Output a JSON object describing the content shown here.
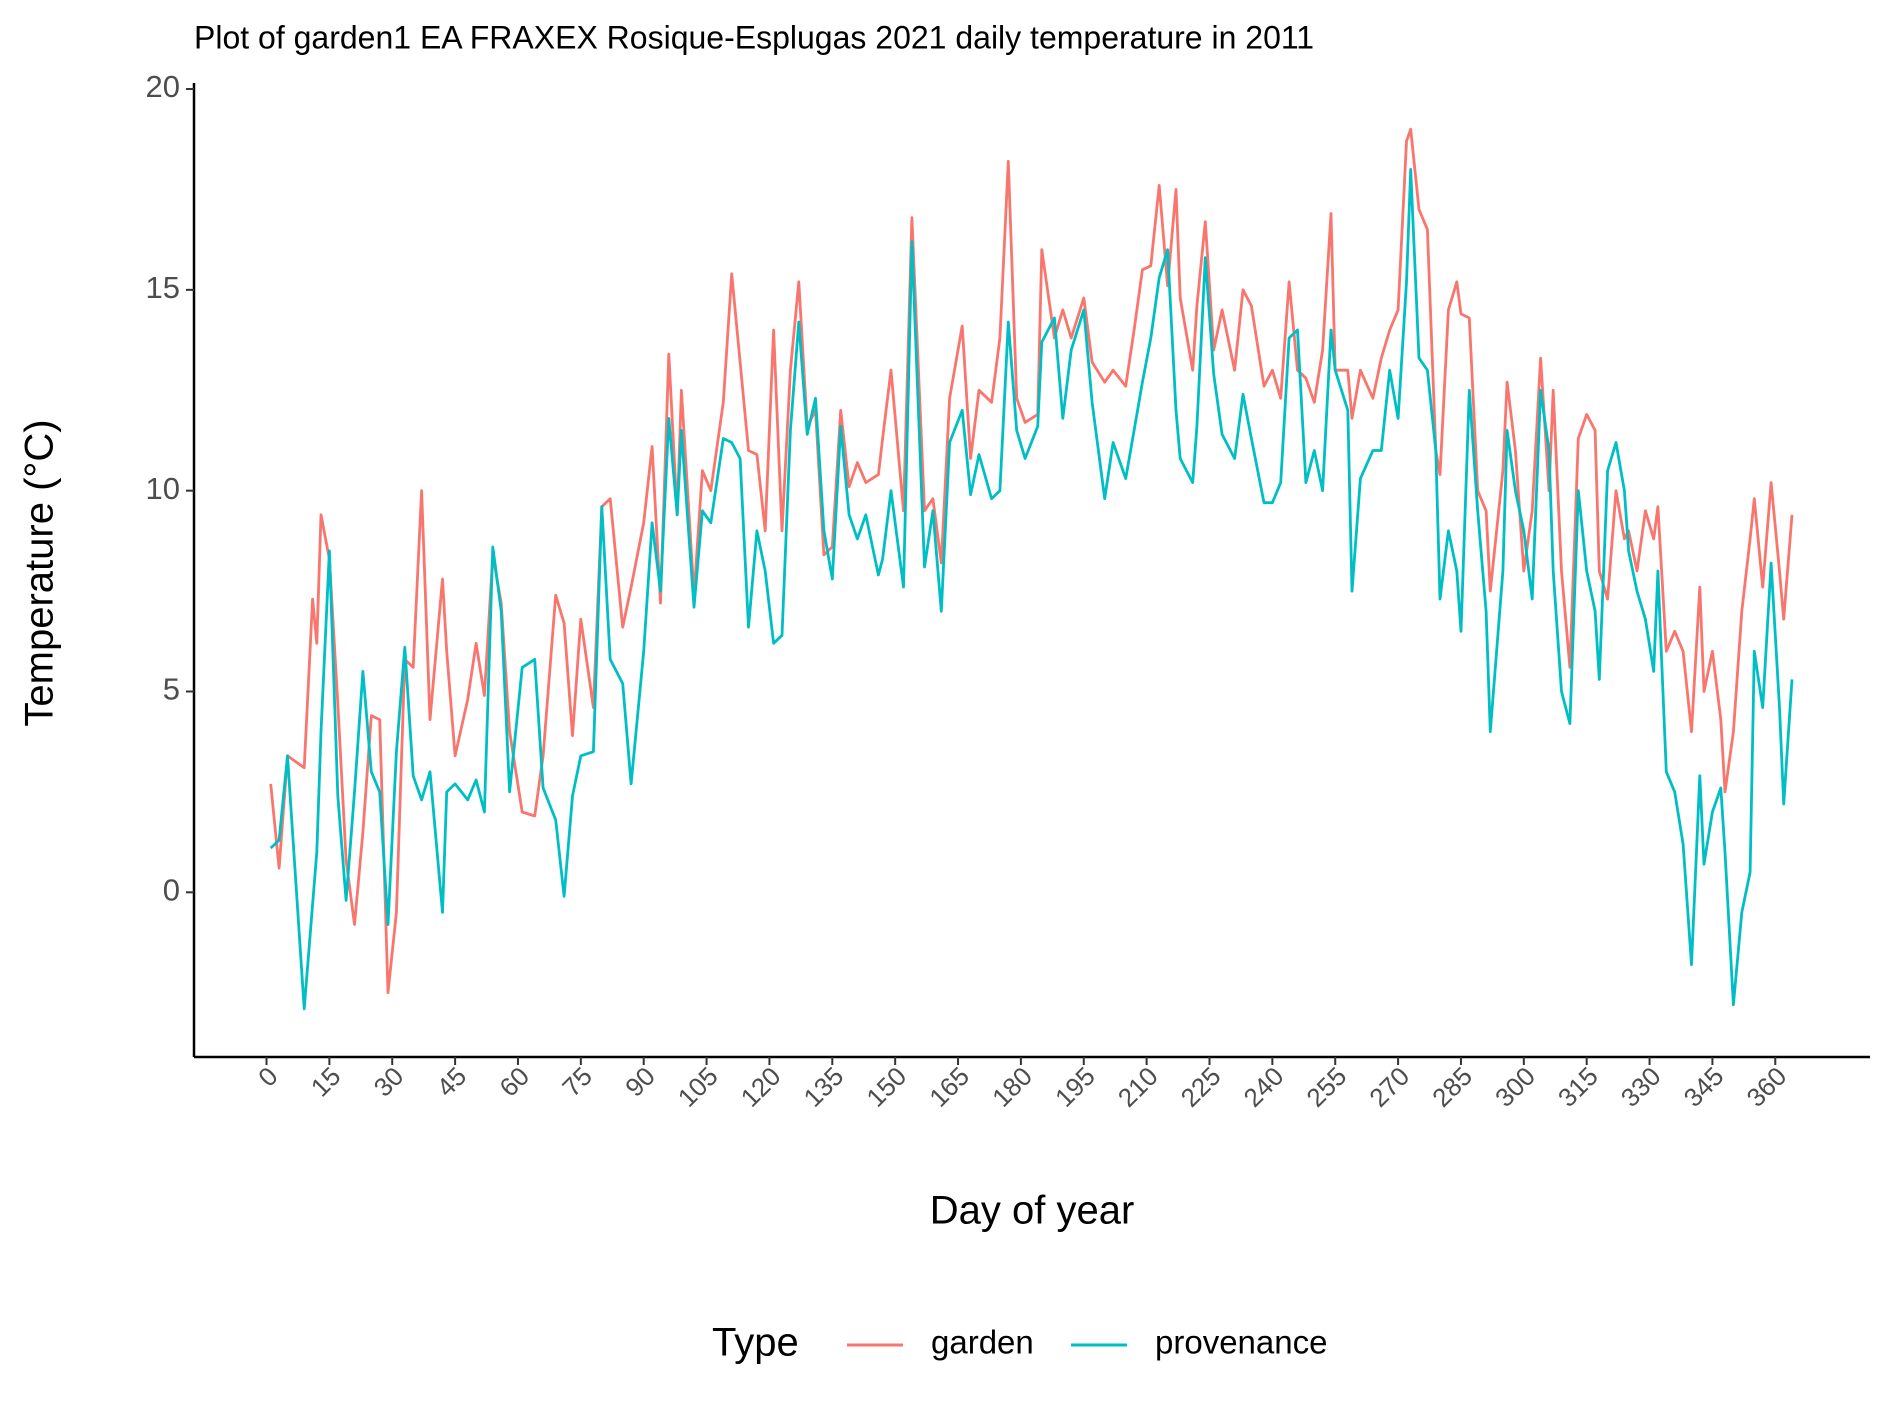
{
  "chart_data": {
    "type": "line",
    "title": "Plot of garden1 EA FRAXEX Rosique-Esplugas 2021 daily temperature in 2011",
    "xlabel": "Day of year",
    "ylabel": "Temperature (°C)",
    "legend_title": "Type",
    "legend": "bottom",
    "x": [
      1,
      3,
      5,
      9,
      11,
      12,
      13,
      15,
      17,
      19,
      21,
      23,
      25,
      27,
      29,
      31,
      33,
      35,
      37,
      39,
      42,
      43,
      45,
      48,
      50,
      52,
      54,
      56,
      58,
      61,
      64,
      66,
      69,
      71,
      73,
      75,
      78,
      80,
      82,
      85,
      87,
      90,
      92,
      94,
      96,
      98,
      99,
      102,
      104,
      106,
      109,
      111,
      113,
      115,
      117,
      119,
      121,
      123,
      125,
      127,
      129,
      131,
      133,
      135,
      137,
      139,
      141,
      143,
      146,
      147,
      149,
      152,
      154,
      157,
      159,
      161,
      163,
      166,
      168,
      170,
      173,
      175,
      177,
      179,
      181,
      184,
      185,
      188,
      190,
      192,
      195,
      197,
      200,
      202,
      205,
      207,
      209,
      211,
      213,
      215,
      217,
      218,
      221,
      222,
      224,
      226,
      228,
      231,
      233,
      235,
      238,
      240,
      242,
      244,
      246,
      248,
      250,
      252,
      254,
      255,
      258,
      259,
      261,
      264,
      266,
      268,
      270,
      272,
      273,
      275,
      277,
      279,
      280,
      282,
      284,
      285,
      287,
      289,
      291,
      292,
      295,
      296,
      298,
      300,
      302,
      304,
      306,
      307,
      309,
      311,
      313,
      315,
      317,
      318,
      320,
      322,
      324,
      325,
      327,
      329,
      331,
      332,
      334,
      336,
      338,
      340,
      342,
      343,
      345,
      347,
      348,
      350,
      352,
      354,
      355,
      357,
      359,
      361,
      362,
      364
    ],
    "series": [
      {
        "name": "garden",
        "color": "#F8766D",
        "values": [
          2.7,
          0.6,
          3.4,
          3.1,
          7.3,
          6.2,
          9.4,
          8.3,
          4.7,
          0.8,
          -0.8,
          1.5,
          4.4,
          4.3,
          -2.5,
          -0.5,
          5.8,
          5.6,
          10.0,
          4.3,
          7.8,
          6.0,
          3.4,
          4.8,
          6.2,
          4.9,
          8.4,
          7.2,
          4.0,
          2.0,
          1.9,
          3.4,
          7.4,
          6.7,
          3.9,
          6.8,
          4.6,
          9.6,
          9.8,
          6.6,
          7.6,
          9.2,
          11.1,
          7.2,
          13.4,
          9.4,
          12.5,
          7.4,
          10.5,
          10.0,
          12.2,
          15.4,
          13.2,
          11.0,
          10.9,
          9.0,
          14.0,
          9.0,
          13.0,
          15.2,
          11.6,
          12.0,
          8.4,
          8.6,
          12.0,
          10.1,
          10.7,
          10.2,
          10.4,
          11.3,
          13.0,
          9.5,
          16.8,
          9.5,
          9.8,
          8.2,
          12.3,
          14.1,
          10.8,
          12.5,
          12.2,
          13.8,
          18.2,
          12.3,
          11.7,
          11.9,
          16.0,
          13.8,
          14.5,
          13.8,
          14.8,
          13.2,
          12.7,
          13.0,
          12.6,
          14.0,
          15.5,
          15.6,
          17.6,
          15.1,
          17.5,
          14.8,
          13.0,
          14.6,
          16.7,
          13.5,
          14.5,
          13.0,
          15.0,
          14.6,
          12.6,
          13.0,
          12.3,
          15.2,
          13.0,
          12.8,
          12.2,
          13.5,
          16.9,
          13.0,
          13.0,
          11.8,
          13.0,
          12.3,
          13.3,
          14.0,
          14.5,
          18.7,
          19.0,
          17.0,
          16.5,
          11.0,
          10.4,
          14.5,
          15.2,
          14.4,
          14.3,
          10.0,
          9.5,
          7.5,
          10.5,
          12.7,
          11.0,
          8.0,
          9.5,
          13.3,
          10.0,
          12.5,
          8.0,
          5.6,
          11.3,
          11.9,
          11.5,
          8.0,
          7.3,
          10.0,
          8.8,
          9.0,
          8.0,
          9.5,
          8.8,
          9.6,
          6.0,
          6.5,
          6.0,
          4.0,
          7.6,
          5.0,
          6.0,
          4.3,
          2.5,
          4.0,
          7.0,
          8.8,
          9.8,
          7.6,
          10.2,
          8.0,
          6.8,
          9.4
        ]
      },
      {
        "name": "provenance",
        "color": "#00BFC4",
        "values": [
          1.1,
          1.3,
          3.4,
          -2.9,
          -0.3,
          1.0,
          4.0,
          8.5,
          2.4,
          -0.2,
          2.5,
          5.5,
          3.0,
          2.5,
          -0.8,
          3.5,
          6.1,
          2.9,
          2.3,
          3.0,
          -0.5,
          2.5,
          2.7,
          2.3,
          2.8,
          2.0,
          8.6,
          7.0,
          2.5,
          5.6,
          5.8,
          2.6,
          1.8,
          -0.1,
          2.4,
          3.4,
          3.5,
          9.6,
          5.8,
          5.2,
          2.7,
          6.0,
          9.2,
          7.5,
          11.8,
          9.4,
          11.5,
          7.1,
          9.5,
          9.2,
          11.3,
          11.2,
          10.8,
          6.6,
          9.0,
          8.0,
          6.2,
          6.4,
          11.5,
          14.2,
          11.4,
          12.3,
          9.0,
          7.8,
          11.6,
          9.4,
          8.8,
          9.4,
          7.9,
          8.3,
          10.0,
          7.6,
          16.2,
          8.1,
          9.5,
          7.0,
          11.2,
          12.0,
          9.9,
          10.9,
          9.8,
          10.0,
          14.2,
          11.5,
          10.8,
          11.6,
          13.7,
          14.3,
          11.8,
          13.5,
          14.5,
          12.2,
          9.8,
          11.2,
          10.3,
          11.5,
          12.7,
          13.8,
          15.3,
          16.0,
          12.0,
          10.8,
          10.2,
          11.6,
          15.8,
          12.9,
          11.4,
          10.8,
          12.4,
          11.3,
          9.7,
          9.7,
          10.2,
          13.8,
          14.0,
          10.2,
          11.0,
          10.0,
          14.0,
          13.0,
          12.0,
          7.5,
          10.3,
          11.0,
          11.0,
          13.0,
          11.8,
          15.2,
          18.0,
          13.3,
          13.0,
          11.0,
          7.3,
          9.0,
          8.0,
          6.5,
          12.5,
          9.5,
          7.0,
          4.0,
          8.0,
          11.5,
          10.0,
          9.0,
          7.3,
          12.5,
          11.0,
          8.0,
          5.0,
          4.2,
          10.0,
          8.0,
          7.0,
          5.3,
          10.5,
          11.2,
          10.0,
          8.5,
          7.5,
          6.8,
          5.5,
          8.0,
          3.0,
          2.5,
          1.2,
          -1.8,
          2.9,
          0.7,
          2.0,
          2.6,
          1.0,
          -2.8,
          -0.5,
          0.5,
          6.0,
          4.6,
          8.2,
          4.6,
          2.2,
          5.3
        ]
      }
    ],
    "xlim": [
      -17.3,
      382.6
    ],
    "ylim": [
      -4.1,
      20.15
    ],
    "xticks": [
      0,
      15,
      30,
      45,
      60,
      75,
      90,
      105,
      120,
      135,
      150,
      165,
      180,
      195,
      210,
      225,
      240,
      255,
      270,
      285,
      300,
      315,
      330,
      345,
      360
    ],
    "yticks": [
      0,
      5,
      10,
      15,
      20
    ]
  }
}
